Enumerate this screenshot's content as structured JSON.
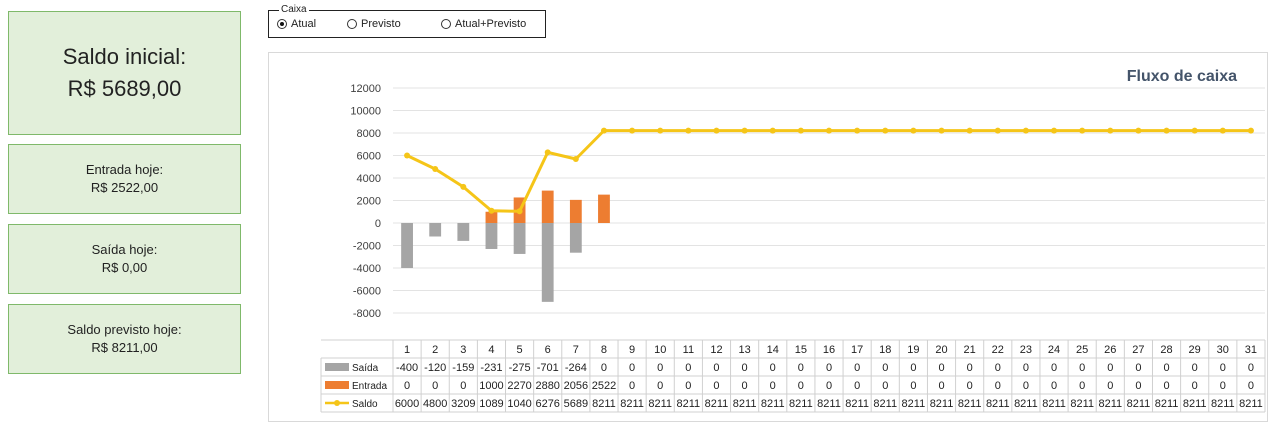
{
  "cards": {
    "saldo_inicial_label": "Saldo inicial:",
    "saldo_inicial_value": "R$ 5689,00",
    "entrada_label": "Entrada hoje:",
    "entrada_value": "R$ 2522,00",
    "saida_label": "Saída hoje:",
    "saida_value": "R$ 0,00",
    "previsto_label": "Saldo previsto hoje:",
    "previsto_value": "R$ 8211,00"
  },
  "caixa": {
    "legend": "Caixa",
    "options": [
      "Atual",
      "Previsto",
      "Atual+Previsto"
    ],
    "selected": "Atual"
  },
  "colors": {
    "saida": "#a5a5a5",
    "entrada": "#ed7d31",
    "saldo": "#f5c518",
    "card_bg": "#e2efda",
    "card_border": "#7fb96a",
    "title": "#44546a"
  },
  "chart_data": {
    "type": "bar",
    "title": "Fluxo de caixa",
    "categories": [
      "1",
      "2",
      "3",
      "4",
      "5",
      "6",
      "7",
      "8",
      "9",
      "10",
      "11",
      "12",
      "13",
      "14",
      "15",
      "16",
      "17",
      "18",
      "19",
      "20",
      "21",
      "22",
      "23",
      "24",
      "25",
      "26",
      "27",
      "28",
      "29",
      "30",
      "31"
    ],
    "ylim": [
      -8000,
      12000
    ],
    "yticks": [
      "12000",
      "10000",
      "8000",
      "6000",
      "4000",
      "2000",
      "0",
      "-2000",
      "-4000",
      "-6000",
      "-8000"
    ],
    "grid": true,
    "legend": "data-table",
    "series": [
      {
        "name": "Saída",
        "type": "bar",
        "values": [
          -400,
          -120,
          -159,
          -231,
          -275,
          -701,
          -264,
          0,
          0,
          0,
          0,
          0,
          0,
          0,
          0,
          0,
          0,
          0,
          0,
          0,
          0,
          0,
          0,
          0,
          0,
          0,
          0,
          0,
          0,
          0,
          0
        ]
      },
      {
        "name": "Entrada",
        "type": "bar",
        "values": [
          0,
          0,
          0,
          1000,
          2270,
          2880,
          2056,
          2522,
          0,
          0,
          0,
          0,
          0,
          0,
          0,
          0,
          0,
          0,
          0,
          0,
          0,
          0,
          0,
          0,
          0,
          0,
          0,
          0,
          0,
          0,
          0
        ]
      },
      {
        "name": "Saldo",
        "type": "line",
        "values": [
          6000,
          4800,
          3209,
          1089,
          1040,
          6276,
          5689,
          8211,
          8211,
          8211,
          8211,
          8211,
          8211,
          8211,
          8211,
          8211,
          8211,
          8211,
          8211,
          8211,
          8211,
          8211,
          8211,
          8211,
          8211,
          8211,
          8211,
          8211,
          8211,
          8211,
          8211
        ]
      }
    ]
  }
}
